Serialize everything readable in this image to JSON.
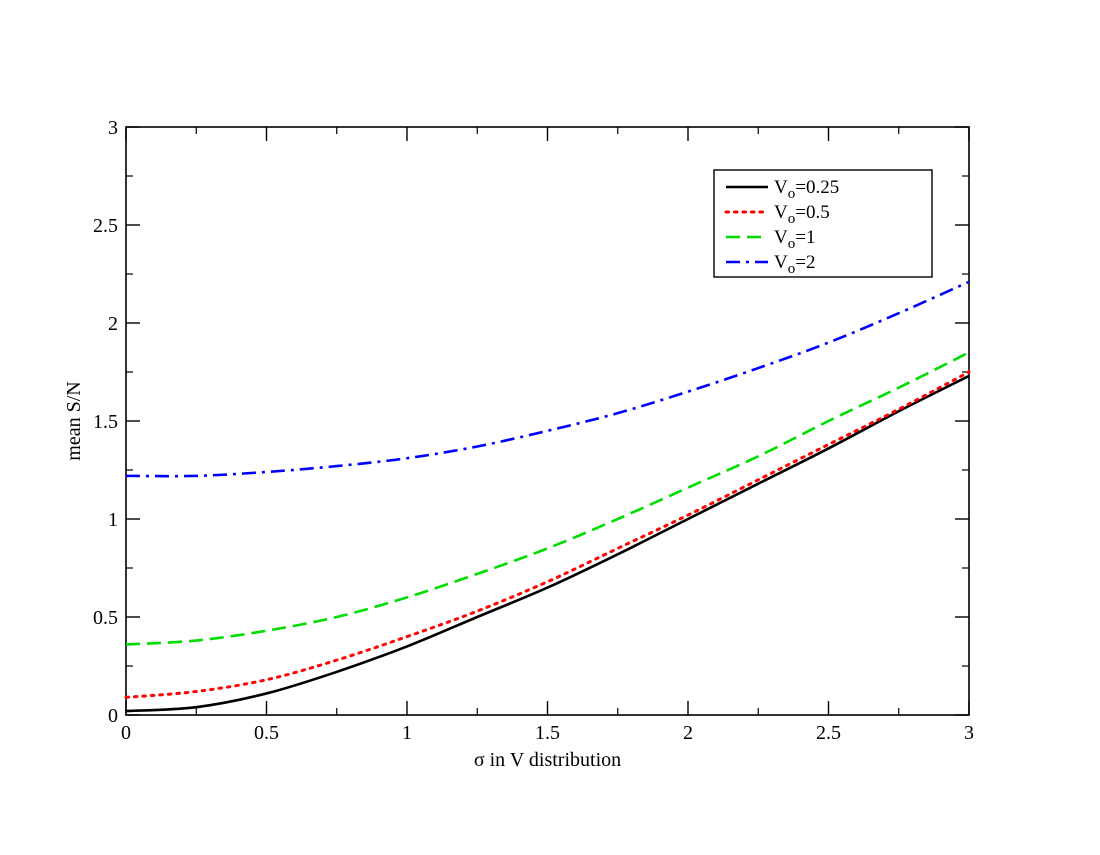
{
  "chart_data": {
    "type": "line",
    "xlabel": "σ in V distribution",
    "ylabel": "mean S/N",
    "xlim": [
      0,
      3
    ],
    "ylim": [
      0,
      3
    ],
    "x_ticks": [
      "0",
      "0.5",
      "1",
      "1.5",
      "2",
      "2.5",
      "3"
    ],
    "y_ticks": [
      "0",
      "0.5",
      "1",
      "1.5",
      "2",
      "2.5",
      "3"
    ],
    "grid": false,
    "legend_position": "top-right",
    "series": [
      {
        "name": "V",
        "subscript": "o",
        "value_label": "=0.25",
        "color": "#000000",
        "style": "solid",
        "x": [
          0,
          0.25,
          0.5,
          0.75,
          1.0,
          1.25,
          1.5,
          1.75,
          2.0,
          2.25,
          2.5,
          2.75,
          3.0
        ],
        "values": [
          0.02,
          0.04,
          0.11,
          0.22,
          0.35,
          0.5,
          0.65,
          0.82,
          1.0,
          1.18,
          1.36,
          1.55,
          1.73
        ]
      },
      {
        "name": "V",
        "subscript": "o",
        "value_label": "=0.5",
        "color": "#ff0000",
        "style": "dotted",
        "x": [
          0,
          0.25,
          0.5,
          0.75,
          1.0,
          1.25,
          1.5,
          1.75,
          2.0,
          2.25,
          2.5,
          2.75,
          3.0
        ],
        "values": [
          0.09,
          0.12,
          0.18,
          0.28,
          0.4,
          0.53,
          0.68,
          0.85,
          1.02,
          1.2,
          1.38,
          1.56,
          1.75
        ]
      },
      {
        "name": "V",
        "subscript": "o",
        "value_label": "=1",
        "color": "#00dd00",
        "style": "dashed",
        "x": [
          0,
          0.25,
          0.5,
          0.75,
          1.0,
          1.25,
          1.5,
          1.75,
          2.0,
          2.25,
          2.5,
          2.75,
          3.0
        ],
        "values": [
          0.36,
          0.38,
          0.43,
          0.5,
          0.6,
          0.72,
          0.85,
          1.0,
          1.16,
          1.32,
          1.5,
          1.67,
          1.85
        ]
      },
      {
        "name": "V",
        "subscript": "o",
        "value_label": "=2",
        "color": "#0000ff",
        "style": "dashdot",
        "x": [
          0,
          0.25,
          0.5,
          0.75,
          1.0,
          1.25,
          1.5,
          1.75,
          2.0,
          2.25,
          2.5,
          2.75,
          3.0
        ],
        "values": [
          1.22,
          1.22,
          1.24,
          1.27,
          1.31,
          1.37,
          1.45,
          1.54,
          1.65,
          1.77,
          1.9,
          2.05,
          2.21
        ]
      }
    ]
  }
}
